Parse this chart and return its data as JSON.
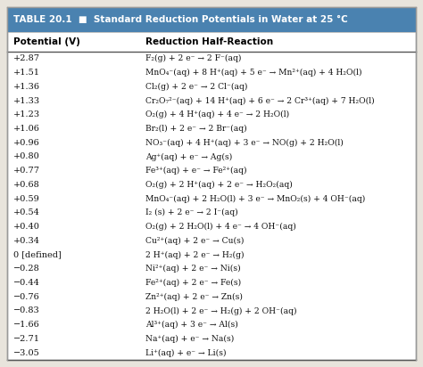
{
  "title": "TABLE 20.1  ■  Standard Reduction Potentials in Water at 25 °C",
  "col1_header": "Potential (V)",
  "col2_header": "Reduction Half-Reaction",
  "header_bg": "#4a82b0",
  "header_text_color": "#ffffff",
  "outer_bg": "#e8e4dc",
  "table_bg": "#ffffff",
  "rows": [
    [
      "+2.87",
      "F₂(g) + 2 e⁻ → 2 F⁻(aq)"
    ],
    [
      "+1.51",
      "MnO₄⁻(aq) + 8 H⁺(aq) + 5 e⁻ → Mn²⁺(aq) + 4 H₂O(l)"
    ],
    [
      "+1.36",
      "Cl₂(g) + 2 e⁻ → 2 Cl⁻(aq)"
    ],
    [
      "+1.33",
      "Cr₂O₇²⁻(aq) + 14 H⁺(aq) + 6 e⁻ → 2 Cr³⁺(aq) + 7 H₂O(l)"
    ],
    [
      "+1.23",
      "O₂(g) + 4 H⁺(aq) + 4 e⁻ → 2 H₂O(l)"
    ],
    [
      "+1.06",
      "Br₂(l) + 2 e⁻ → 2 Br⁻(aq)"
    ],
    [
      "+0.96",
      "NO₃⁻(aq) + 4 H⁺(aq) + 3 e⁻ → NO(g) + 2 H₂O(l)"
    ],
    [
      "+0.80",
      "Ag⁺(aq) + e⁻ → Ag(s)"
    ],
    [
      "+0.77",
      "Fe³⁺(aq) + e⁻ → Fe²⁺(aq)"
    ],
    [
      "+0.68",
      "O₂(g) + 2 H⁺(aq) + 2 e⁻ → H₂O₂(aq)"
    ],
    [
      "+0.59",
      "MnO₄⁻(aq) + 2 H₂O(l) + 3 e⁻ → MnO₂(s) + 4 OH⁻(aq)"
    ],
    [
      "+0.54",
      "I₂ (s) + 2 e⁻ → 2 I⁻(aq)"
    ],
    [
      "+0.40",
      "O₂(g) + 2 H₂O(l) + 4 e⁻ → 4 OH⁻(aq)"
    ],
    [
      "+0.34",
      "Cu²⁺(aq) + 2 e⁻ → Cu(s)"
    ],
    [
      "0 [defined]",
      "2 H⁺(aq) + 2 e⁻ → H₂(g)"
    ],
    [
      "−0.28",
      "Ni²⁺(aq) + 2 e⁻ → Ni(s)"
    ],
    [
      "−0.44",
      "Fe²⁺(aq) + 2 e⁻ → Fe(s)"
    ],
    [
      "−0.76",
      "Zn²⁺(aq) + 2 e⁻ → Zn(s)"
    ],
    [
      "−0.83",
      "2 H₂O(l) + 2 e⁻ → H₂(g) + 2 OH⁻(aq)"
    ],
    [
      "−1.66",
      "Al³⁺(aq) + 3 e⁻ → Al(s)"
    ],
    [
      "−2.71",
      "Na⁺(aq) + e⁻ → Na(s)"
    ],
    [
      "−3.05",
      "Li⁺(aq) + e⁻ → Li(s)"
    ]
  ],
  "figsize": [
    4.74,
    4.12
  ],
  "dpi": 100
}
